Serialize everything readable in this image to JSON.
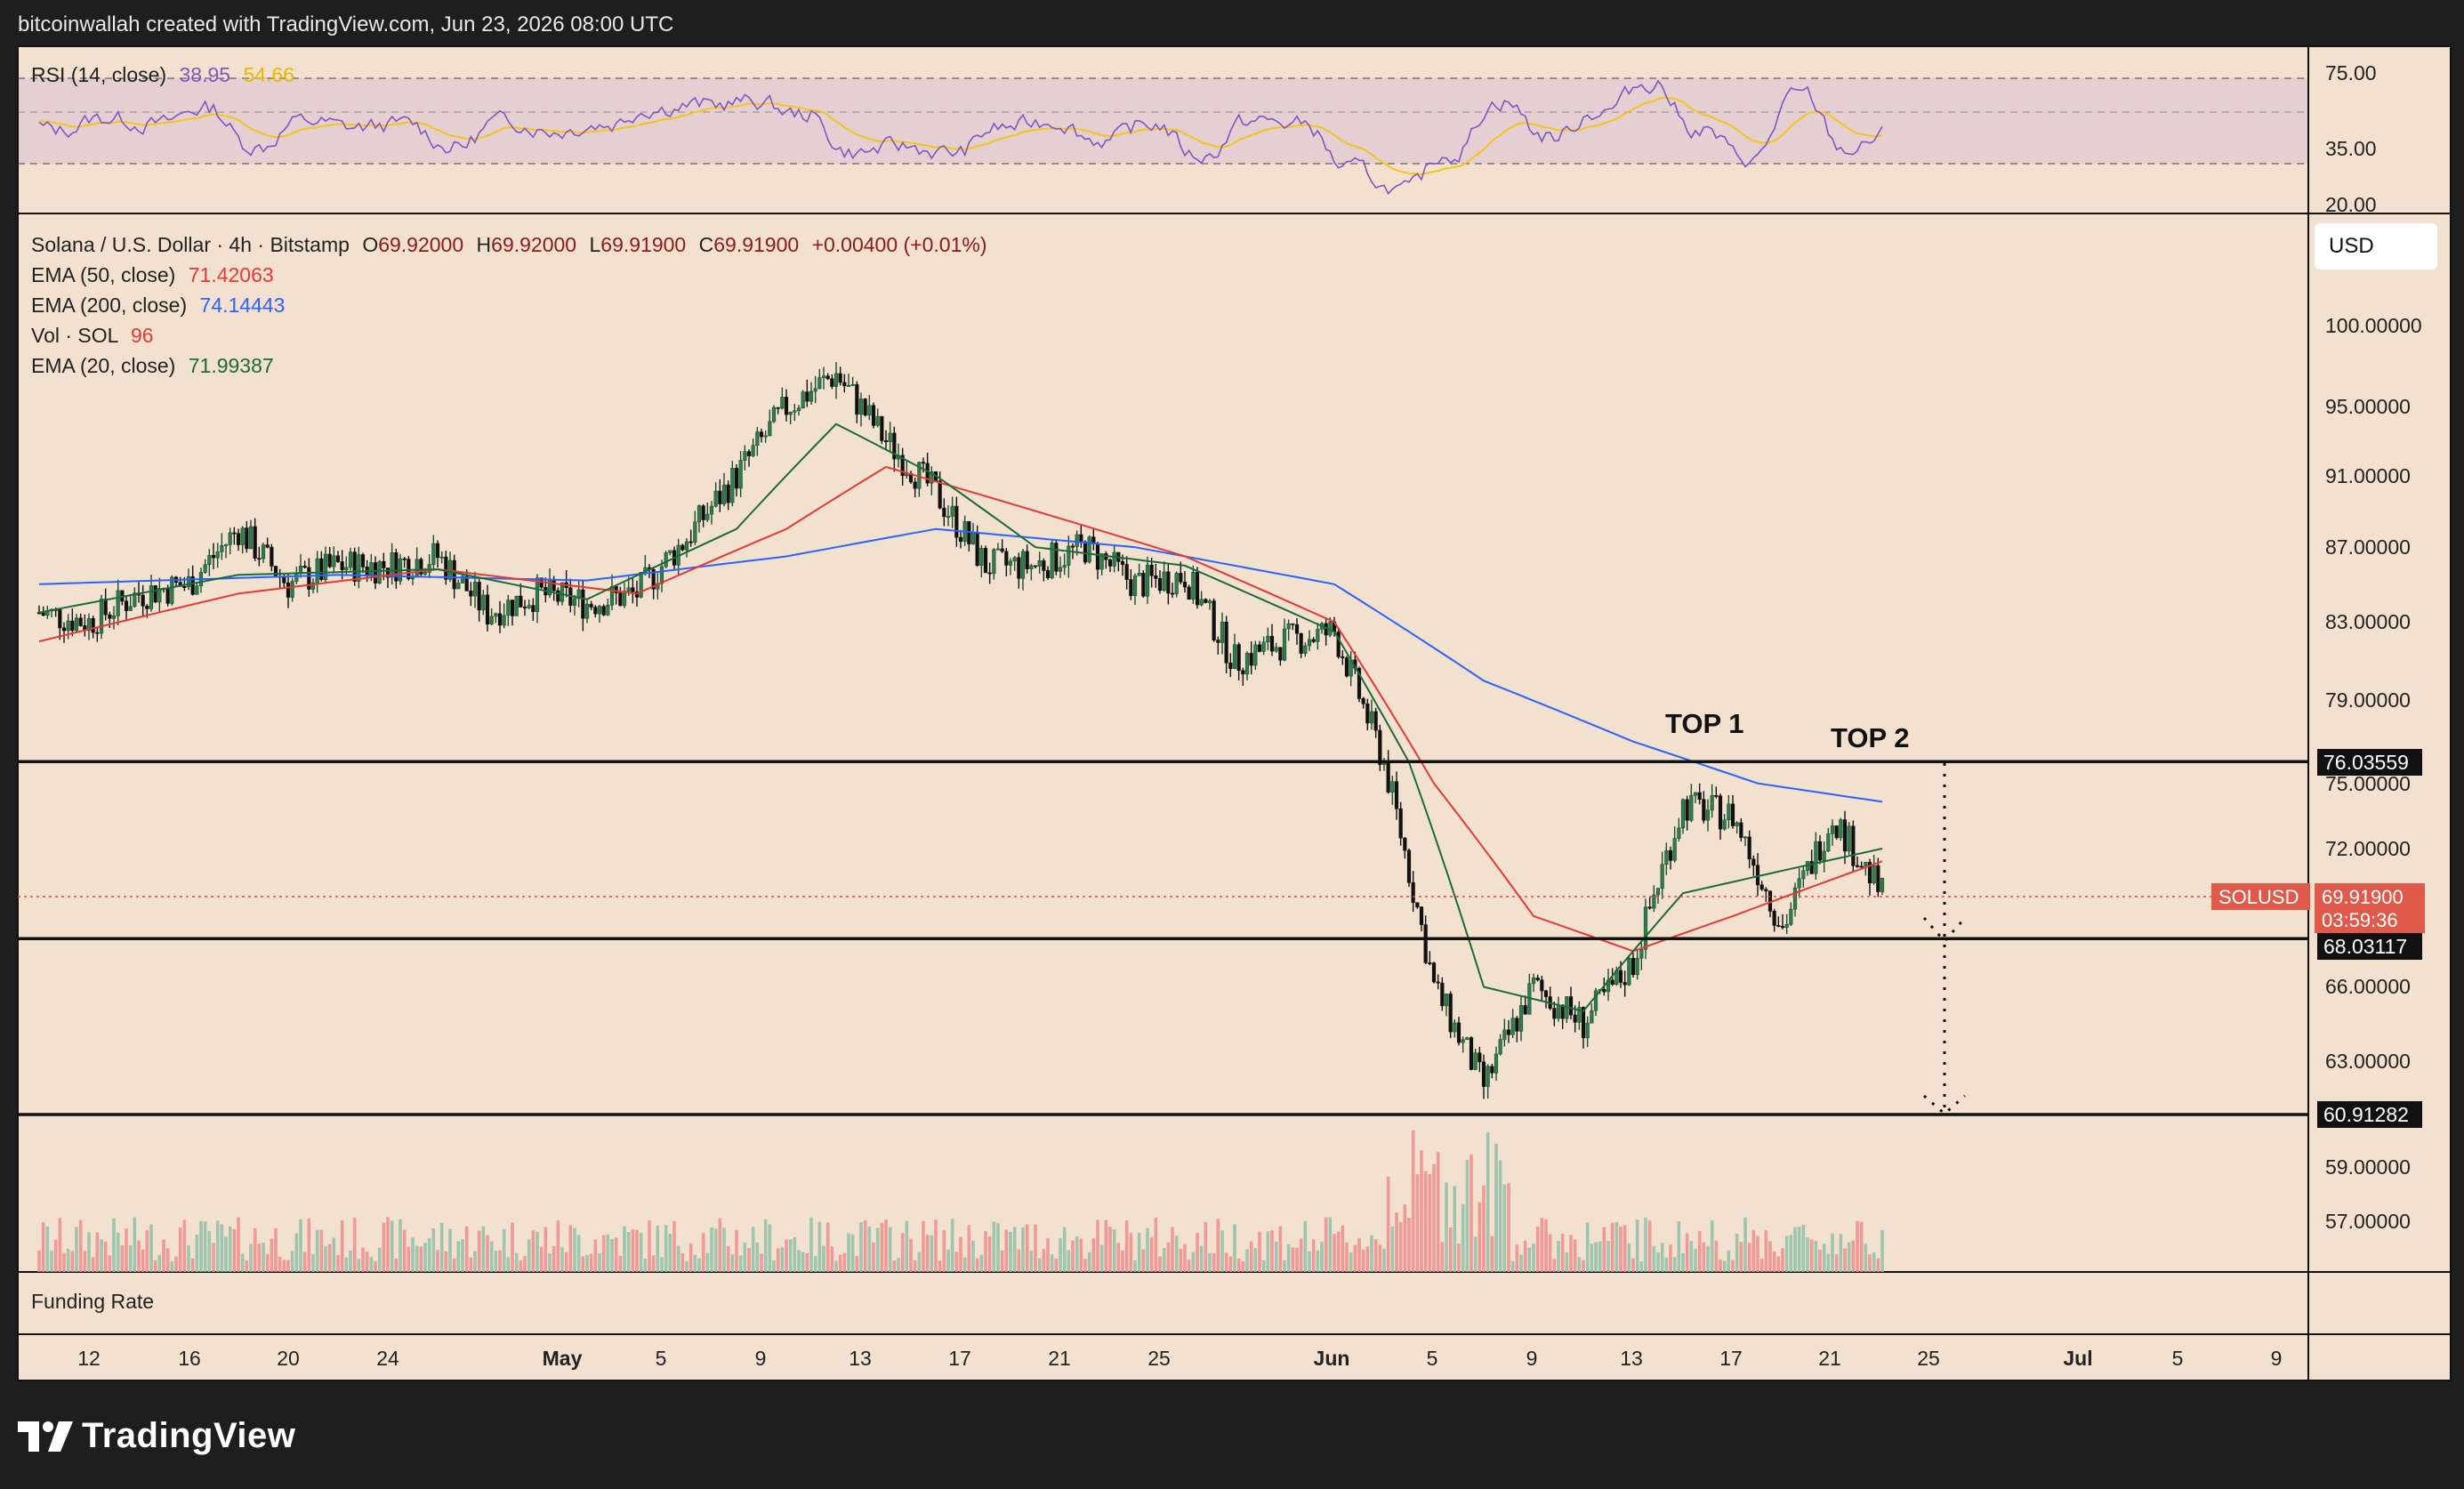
{
  "header": {
    "attribution": "bitcoinwallah created with TradingView.com, Jun 23, 2026 08:00 UTC"
  },
  "footer": {
    "brand": "TradingView"
  },
  "currency_button": "USD",
  "rsi_panel": {
    "label": "RSI (14, close)",
    "rsi_value": "38.95",
    "ma_value": "54.66",
    "tick_labels": [
      "75.00",
      "35.00",
      "20.00"
    ],
    "colors": {
      "rsi": "#7e57c2",
      "ma": "#f5c518",
      "band": "#d9c7d6"
    }
  },
  "legend": {
    "symbol": "Solana / U.S. Dollar · 4h · Bitstamp",
    "ohlc": {
      "o_label": "O",
      "o": "69.92000",
      "h_label": "H",
      "h": "69.92000",
      "l_label": "L",
      "l": "69.91900",
      "c_label": "C",
      "c": "69.91900",
      "change": "+0.00400 (+0.01%)"
    },
    "ema50": {
      "label": "EMA (50, close)",
      "value": "71.42063",
      "color": "#e53935"
    },
    "ema200": {
      "label": "EMA (200, close)",
      "value": "74.14443",
      "color": "#2962ff"
    },
    "vol": {
      "label": "Vol · SOL",
      "value": "96",
      "color": "#e53935"
    },
    "ema20": {
      "label": "EMA (20, close)",
      "value": "71.99387",
      "color": "#1b6b3a"
    }
  },
  "annotations": {
    "top1": "TOP 1",
    "top2": "TOP 2"
  },
  "horizontal_levels": [
    {
      "value": 76.03559,
      "label": "76.03559"
    },
    {
      "value": 68.03117,
      "label": "68.03117"
    },
    {
      "value": 60.91282,
      "label": "60.91282"
    }
  ],
  "current_price": {
    "symbol": "SOLUSD",
    "price": "69.91900",
    "countdown": "03:59:36"
  },
  "funding_panel": {
    "label": "Funding Rate"
  },
  "chart_data": {
    "type": "candlestick",
    "title": "Solana / U.S. Dollar · 4h · Bitstamp",
    "price_axis": {
      "scale": "log",
      "ticks": [
        "100.00000",
        "95.00000",
        "91.00000",
        "87.00000",
        "83.00000",
        "79.00000",
        "75.00000",
        "72.00000",
        "66.00000",
        "63.00000",
        "59.00000",
        "57.00000"
      ]
    },
    "time_axis": {
      "ticks": [
        "12",
        "16",
        "20",
        "24",
        "May",
        "5",
        "9",
        "13",
        "17",
        "21",
        "25",
        "Jun",
        "5",
        "9",
        "13",
        "17",
        "21",
        "25",
        "Jul",
        "5",
        "9"
      ]
    },
    "daily_closes_approx": [
      {
        "date": "Apr 10",
        "close": 83.5
      },
      {
        "date": "Apr 12",
        "close": 83.0
      },
      {
        "date": "Apr 14",
        "close": 84.5
      },
      {
        "date": "Apr 16",
        "close": 85.0
      },
      {
        "date": "Apr 18",
        "close": 88.0
      },
      {
        "date": "Apr 20",
        "close": 85.0
      },
      {
        "date": "Apr 22",
        "close": 86.0
      },
      {
        "date": "Apr 24",
        "close": 86.0
      },
      {
        "date": "Apr 26",
        "close": 86.5
      },
      {
        "date": "Apr 28",
        "close": 83.5
      },
      {
        "date": "Apr 30",
        "close": 84.5
      },
      {
        "date": "May 2",
        "close": 84.0
      },
      {
        "date": "May 4",
        "close": 84.5
      },
      {
        "date": "May 6",
        "close": 87.5
      },
      {
        "date": "May 8",
        "close": 91.0
      },
      {
        "date": "May 10",
        "close": 95.0
      },
      {
        "date": "May 12",
        "close": 97.0
      },
      {
        "date": "May 14",
        "close": 93.0
      },
      {
        "date": "May 16",
        "close": 90.0
      },
      {
        "date": "May 18",
        "close": 86.0
      },
      {
        "date": "May 20",
        "close": 86.0
      },
      {
        "date": "May 22",
        "close": 87.0
      },
      {
        "date": "May 24",
        "close": 85.0
      },
      {
        "date": "May 26",
        "close": 85.5
      },
      {
        "date": "May 28",
        "close": 81.0
      },
      {
        "date": "May 30",
        "close": 82.0
      },
      {
        "date": "Jun 1",
        "close": 82.5
      },
      {
        "date": "Jun 3",
        "close": 76.0
      },
      {
        "date": "Jun 5",
        "close": 66.0
      },
      {
        "date": "Jun 7",
        "close": 62.0
      },
      {
        "date": "Jun 9",
        "close": 66.0
      },
      {
        "date": "Jun 11",
        "close": 64.5
      },
      {
        "date": "Jun 13",
        "close": 67.0
      },
      {
        "date": "Jun 15",
        "close": 74.0
      },
      {
        "date": "Jun 17",
        "close": 73.5
      },
      {
        "date": "Jun 19",
        "close": 68.5
      },
      {
        "date": "Jun 21",
        "close": 73.5
      },
      {
        "date": "Jun 23",
        "close": 69.919
      }
    ],
    "ema20_approx": [
      {
        "date": "Apr 10",
        "value": 83.5
      },
      {
        "date": "Apr 18",
        "value": 85.5
      },
      {
        "date": "Apr 26",
        "value": 85.8
      },
      {
        "date": "May 2",
        "value": 84.2
      },
      {
        "date": "May 8",
        "value": 88.0
      },
      {
        "date": "May 12",
        "value": 94.0
      },
      {
        "date": "May 16",
        "value": 91.0
      },
      {
        "date": "May 20",
        "value": 87.0
      },
      {
        "date": "May 26",
        "value": 86.0
      },
      {
        "date": "Jun 1",
        "value": 82.5
      },
      {
        "date": "Jun 4",
        "value": 76.0
      },
      {
        "date": "Jun 7",
        "value": 66.0
      },
      {
        "date": "Jun 11",
        "value": 65.0
      },
      {
        "date": "Jun 15",
        "value": 70.0
      },
      {
        "date": "Jun 19",
        "value": 71.0
      },
      {
        "date": "Jun 23",
        "value": 71.99
      }
    ],
    "ema50_approx": [
      {
        "date": "Apr 10",
        "value": 82.0
      },
      {
        "date": "Apr 18",
        "value": 84.5
      },
      {
        "date": "Apr 26",
        "value": 85.8
      },
      {
        "date": "May 4",
        "value": 84.5
      },
      {
        "date": "May 10",
        "value": 88.0
      },
      {
        "date": "May 14",
        "value": 91.5
      },
      {
        "date": "May 20",
        "value": 89.0
      },
      {
        "date": "May 26",
        "value": 86.5
      },
      {
        "date": "Jun 1",
        "value": 83.0
      },
      {
        "date": "Jun 5",
        "value": 75.0
      },
      {
        "date": "Jun 9",
        "value": 69.0
      },
      {
        "date": "Jun 13",
        "value": 67.5
      },
      {
        "date": "Jun 17",
        "value": 69.0
      },
      {
        "date": "Jun 23",
        "value": 71.42
      }
    ],
    "ema200_approx": [
      {
        "date": "Apr 10",
        "value": 85.0
      },
      {
        "date": "Apr 22",
        "value": 85.5
      },
      {
        "date": "May 2",
        "value": 85.2
      },
      {
        "date": "May 10",
        "value": 86.5
      },
      {
        "date": "May 16",
        "value": 88.0
      },
      {
        "date": "May 24",
        "value": 87.0
      },
      {
        "date": "Jun 1",
        "value": 85.0
      },
      {
        "date": "Jun 7",
        "value": 80.0
      },
      {
        "date": "Jun 13",
        "value": 77.0
      },
      {
        "date": "Jun 18",
        "value": 75.0
      },
      {
        "date": "Jun 23",
        "value": 74.14
      }
    ],
    "colors": {
      "up": "#1e4d2b",
      "down": "#111111",
      "vol_up": "#8fbfa8",
      "vol_down": "#f08c8c",
      "background": "#f2e1cf"
    }
  }
}
